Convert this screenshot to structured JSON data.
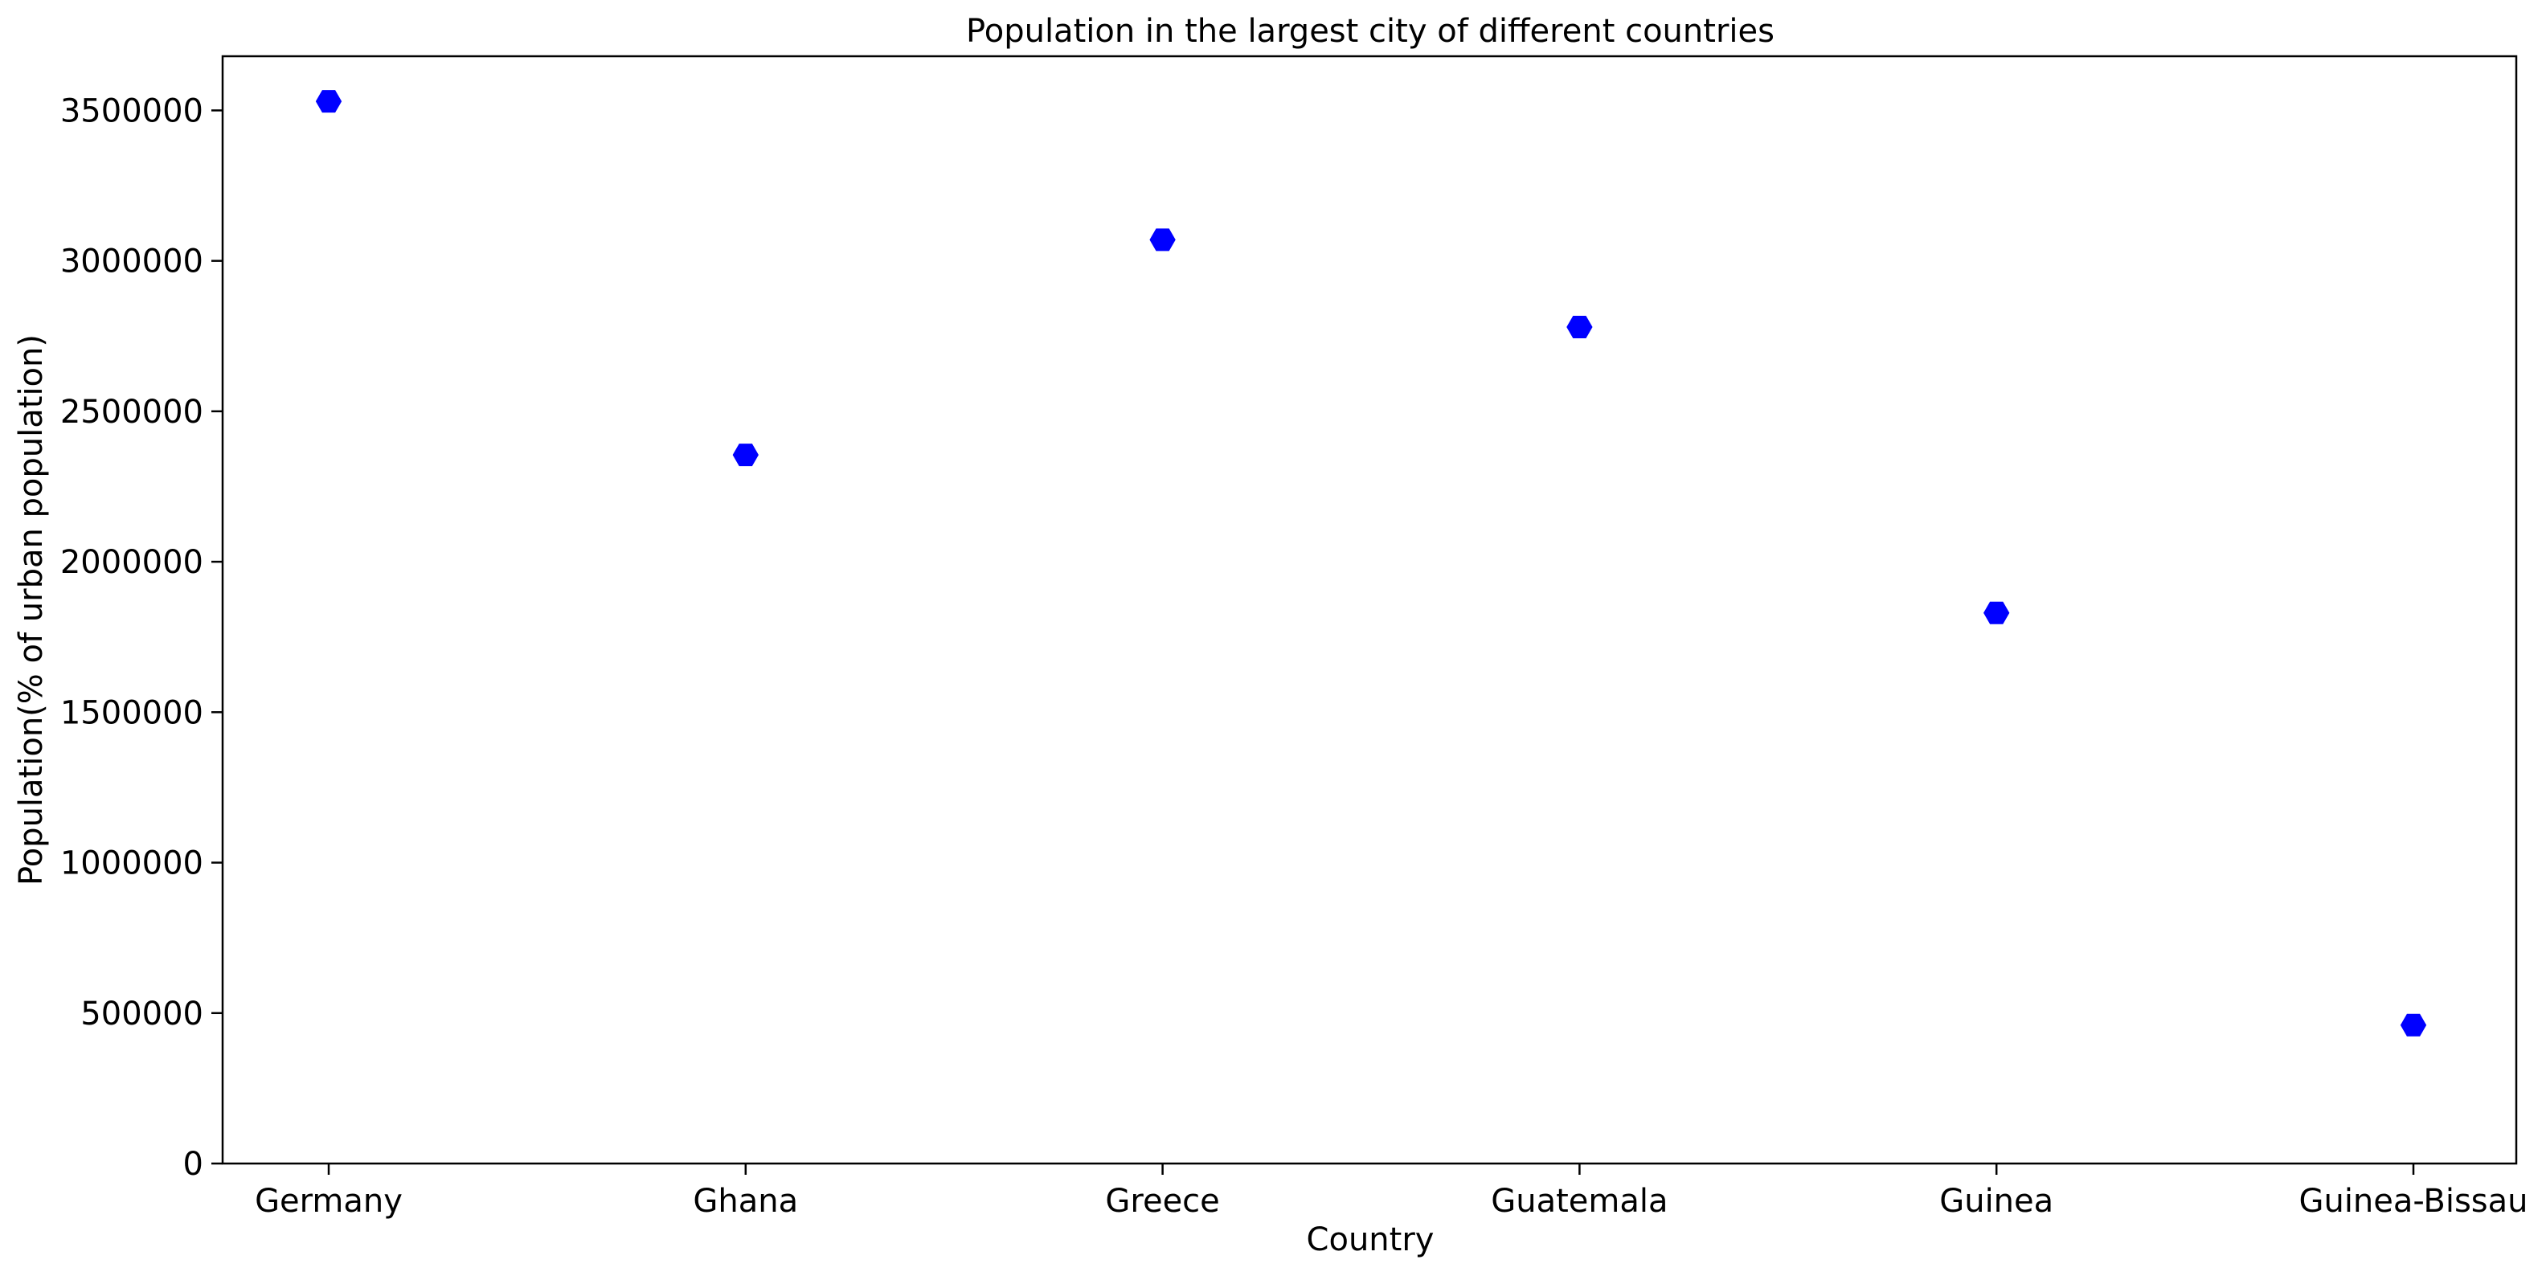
{
  "chart_data": {
    "type": "scatter",
    "title": "Population in the largest city of different countries",
    "xlabel": "Country",
    "ylabel": "Population(% of urban population)",
    "categories": [
      "Germany",
      "Ghana",
      "Greece",
      "Guatemala",
      "Guinea",
      "Guinea-Bissau"
    ],
    "series": [
      {
        "values": [
          3530000,
          2355000,
          3070000,
          2780000,
          1830000,
          460000
        ]
      }
    ],
    "ylim": [
      0,
      3680000
    ],
    "yticks": [
      0,
      500000,
      1000000,
      1500000,
      2000000,
      2500000,
      3000000,
      3500000
    ],
    "ytick_labels": [
      "0",
      "500000",
      "1000000",
      "1500000",
      "2000000",
      "2500000",
      "3000000",
      "3500000"
    ],
    "marker": "hexagon",
    "marker_color": "#0000ff",
    "grid": false,
    "legend": "none"
  }
}
